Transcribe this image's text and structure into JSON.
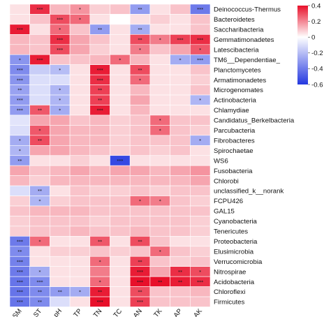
{
  "chart_data": {
    "type": "heatmap",
    "title": "",
    "columns": [
      "SM",
      "ST",
      "pH",
      "TP",
      "TN",
      "TC",
      "AN",
      "TK",
      "AP",
      "AK"
    ],
    "rows": [
      "Deinococcus-Thermus",
      "Bacteroidetes",
      "Saccharibacteria",
      "Gemmatimonadetes",
      "Latescibacteria",
      "TM6__Dependentiae_",
      "Planctomycetes",
      "Armatimonadetes",
      "Microgenomates",
      "Actinobacteria",
      "Chlamydiae",
      "Candidatus_Berkelbacteria",
      "Parcubacteria",
      "Fibrobacteres",
      "Spirochaetae",
      "WS6",
      "Fusobacteria",
      "Chlorobi",
      "unclassified_k__norank",
      "FCPU426",
      "GAL15",
      "Cyanobacteria",
      "Tenericutes",
      "Proteobacteria",
      "Elusimicrobia",
      "Verrucomicrobia",
      "Nitrospirae",
      "Acidobacteria",
      "Chloroflexi",
      "Firmicutes"
    ],
    "values": [
      [
        0.05,
        0.35,
        0.12,
        0.18,
        0.08,
        0.1,
        -0.3,
        0.05,
        0.1,
        -0.4
      ],
      [
        0.05,
        0.1,
        0.3,
        0.25,
        0.05,
        0.0,
        0.05,
        0.08,
        0.05,
        0.1
      ],
      [
        0.38,
        0.05,
        0.25,
        0.1,
        -0.3,
        0.05,
        -0.25,
        0.05,
        0.05,
        0.1
      ],
      [
        0.12,
        0.1,
        0.35,
        0.15,
        0.1,
        0.05,
        0.3,
        0.22,
        0.32,
        0.35
      ],
      [
        0.12,
        0.1,
        0.3,
        0.15,
        0.08,
        0.05,
        0.22,
        0.1,
        0.15,
        0.28
      ],
      [
        -0.32,
        0.38,
        0.1,
        0.1,
        0.12,
        0.25,
        0.12,
        0.05,
        -0.25,
        -0.3
      ],
      [
        -0.35,
        -0.15,
        -0.2,
        0.05,
        0.38,
        0.05,
        0.3,
        0.05,
        0.05,
        0.1
      ],
      [
        -0.32,
        -0.1,
        -0.1,
        0.05,
        0.35,
        0.05,
        0.25,
        0.05,
        0.05,
        0.08
      ],
      [
        -0.28,
        -0.1,
        -0.22,
        0.05,
        0.32,
        0.05,
        0.12,
        0.05,
        0.05,
        0.1
      ],
      [
        -0.3,
        -0.1,
        -0.22,
        0.05,
        0.32,
        0.05,
        0.15,
        0.05,
        0.05,
        -0.22
      ],
      [
        -0.3,
        0.28,
        -0.25,
        0.05,
        0.38,
        0.05,
        0.12,
        0.05,
        0.05,
        0.05
      ],
      [
        -0.08,
        0.15,
        0.15,
        0.1,
        0.12,
        0.08,
        0.1,
        0.25,
        0.1,
        0.1
      ],
      [
        -0.1,
        0.28,
        0.15,
        0.12,
        0.12,
        0.08,
        0.1,
        0.25,
        0.1,
        0.08
      ],
      [
        -0.25,
        0.3,
        0.15,
        0.12,
        0.12,
        0.08,
        0.1,
        0.1,
        0.1,
        -0.25
      ],
      [
        -0.22,
        0.15,
        0.15,
        0.12,
        0.1,
        0.08,
        0.1,
        0.08,
        0.1,
        0.05
      ],
      [
        -0.3,
        0.05,
        0.05,
        0.08,
        0.05,
        -0.55,
        0.05,
        0.05,
        0.05,
        0.05
      ],
      [
        0.15,
        0.1,
        0.12,
        0.15,
        0.12,
        0.15,
        0.15,
        0.12,
        0.15,
        0.18
      ],
      [
        0.12,
        0.08,
        0.12,
        0.12,
        0.12,
        0.12,
        0.12,
        0.12,
        0.12,
        0.15
      ],
      [
        -0.1,
        -0.25,
        0.05,
        0.1,
        0.08,
        0.08,
        0.1,
        0.08,
        0.1,
        0.1
      ],
      [
        0.08,
        -0.22,
        0.08,
        0.1,
        0.1,
        0.1,
        0.25,
        0.22,
        0.1,
        0.08
      ],
      [
        0.1,
        0.12,
        0.12,
        0.12,
        0.1,
        0.1,
        0.1,
        0.1,
        0.1,
        0.1
      ],
      [
        0.08,
        0.1,
        0.1,
        0.1,
        0.08,
        0.1,
        0.1,
        0.1,
        0.1,
        0.08
      ],
      [
        0.08,
        0.1,
        0.1,
        0.12,
        0.1,
        0.1,
        0.12,
        0.1,
        0.1,
        0.08
      ],
      [
        -0.4,
        0.25,
        0.05,
        0.05,
        0.28,
        0.05,
        0.3,
        0.1,
        0.05,
        0.05
      ],
      [
        -0.35,
        0.05,
        0.08,
        0.08,
        0.1,
        0.08,
        0.1,
        0.25,
        0.1,
        0.08
      ],
      [
        -0.38,
        0.05,
        0.05,
        0.05,
        0.25,
        0.05,
        0.32,
        0.1,
        0.08,
        0.1
      ],
      [
        -0.4,
        -0.25,
        0.05,
        0.05,
        0.22,
        0.05,
        0.38,
        0.15,
        0.35,
        0.3
      ],
      [
        -0.42,
        -0.35,
        0.05,
        0.05,
        0.25,
        0.05,
        0.48,
        0.4,
        0.38,
        0.35
      ],
      [
        -0.42,
        -0.35,
        -0.3,
        -0.25,
        0.38,
        0.05,
        0.3,
        0.1,
        0.1,
        0.12
      ],
      [
        -0.42,
        -0.35,
        -0.1,
        0.05,
        0.4,
        0.05,
        0.32,
        0.1,
        0.1,
        0.1
      ]
    ],
    "significance": [
      [
        "",
        "***",
        "",
        "*",
        "",
        "",
        "**",
        "",
        "",
        "***"
      ],
      [
        "",
        "",
        "***",
        "*",
        "",
        "",
        "",
        "",
        "",
        ""
      ],
      [
        "***",
        "",
        "*",
        "",
        "**",
        "",
        "**",
        "",
        "",
        ""
      ],
      [
        "",
        "",
        "***",
        "",
        "",
        "",
        "**",
        "*",
        "***",
        "***"
      ],
      [
        "",
        "",
        "***",
        "",
        "",
        "",
        "*",
        "",
        "",
        "*"
      ],
      [
        "*",
        "***",
        "",
        "",
        "",
        "*",
        "",
        "",
        "*",
        "***"
      ],
      [
        "***",
        "",
        "*",
        "",
        "***",
        "",
        "**",
        "",
        "",
        ""
      ],
      [
        "***",
        "",
        "",
        "",
        "***",
        "",
        "*",
        "",
        "",
        ""
      ],
      [
        "**",
        "",
        "*",
        "",
        "**",
        "",
        "",
        "",
        "",
        ""
      ],
      [
        "***",
        "",
        "*",
        "",
        "**",
        "",
        "",
        "",
        "",
        "*"
      ],
      [
        "***",
        "**",
        "*",
        "",
        "***",
        "",
        "",
        "",
        "",
        ""
      ],
      [
        "",
        "",
        "",
        "",
        "",
        "",
        "",
        "*",
        "",
        ""
      ],
      [
        "",
        "*",
        "",
        "",
        "",
        "",
        "",
        "*",
        "",
        ""
      ],
      [
        "*",
        "**",
        "",
        "",
        "",
        "",
        "",
        "",
        "",
        "*"
      ],
      [
        "*",
        "",
        "",
        "",
        "",
        "",
        "",
        "",
        "",
        ""
      ],
      [
        "**",
        "",
        "",
        "",
        "",
        "***",
        "",
        "",
        "",
        ""
      ],
      [
        "",
        "",
        "",
        "",
        "",
        "",
        "",
        "",
        "",
        ""
      ],
      [
        "",
        "",
        "",
        "",
        "",
        "",
        "",
        "",
        "",
        ""
      ],
      [
        "",
        "**",
        "",
        "",
        "",
        "",
        "",
        "",
        "",
        ""
      ],
      [
        "",
        "*",
        "",
        "",
        "",
        "",
        "*",
        "*",
        "",
        ""
      ],
      [
        "",
        "",
        "",
        "",
        "",
        "",
        "",
        "",
        "",
        ""
      ],
      [
        "",
        "",
        "",
        "",
        "",
        "",
        "",
        "",
        "",
        ""
      ],
      [
        "",
        "",
        "",
        "",
        "",
        "",
        "",
        "",
        "",
        ""
      ],
      [
        "***",
        "*",
        "",
        "",
        "**",
        "",
        "**",
        "",
        "",
        ""
      ],
      [
        "**",
        "",
        "",
        "",
        "",
        "",
        "",
        "*",
        "",
        ""
      ],
      [
        "***",
        "",
        "",
        "",
        "*",
        "",
        "**",
        "",
        "",
        ""
      ],
      [
        "***",
        "*",
        "",
        "",
        "",
        "",
        "***",
        "",
        "**",
        "*"
      ],
      [
        "***",
        "***",
        "",
        "",
        "*",
        "",
        "***",
        "**",
        "**",
        "***"
      ],
      [
        "***",
        "**",
        "**",
        "*",
        "**",
        "",
        "**",
        "",
        "",
        ""
      ],
      [
        "***",
        "**",
        "",
        "",
        "***",
        "",
        "***",
        "",
        "",
        ""
      ]
    ],
    "colorbar": {
      "min": -0.6,
      "max": 0.4,
      "ticks": [
        0.4,
        0.2,
        0,
        -0.2,
        -0.4,
        -0.6
      ],
      "tick_labels": [
        "0.4",
        "0.2",
        "0",
        "-0.2",
        "-0.4",
        "-0.6"
      ],
      "colors": {
        "negative": "#2438e0",
        "neutral": "#ffffff",
        "positive": "#e8102a"
      }
    },
    "grid": true,
    "legend_position": "top-right"
  }
}
